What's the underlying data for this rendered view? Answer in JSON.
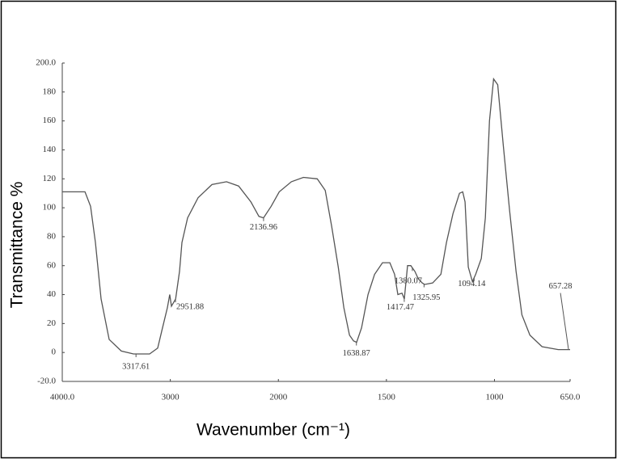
{
  "chart_data": {
    "type": "line",
    "x_label": "Wavenumber (cm⁻¹)",
    "y_label": "Transmittance %",
    "xlim": [
      4000,
      650
    ],
    "x_scale_break": 2000,
    "xticks": [
      {
        "value": 4000,
        "label": "4000.0"
      },
      3000,
      2000,
      1500,
      1000,
      {
        "value": 650,
        "label": "650.0"
      }
    ],
    "ylim": [
      -20,
      200
    ],
    "yticks": [
      {
        "value": 200,
        "label": "200.0"
      },
      180,
      160,
      140,
      120,
      100,
      80,
      60,
      40,
      20,
      0,
      {
        "value": -20,
        "label": "-20.0"
      }
    ],
    "color": "#555555",
    "x": [
      4000,
      3790,
      3738,
      3693,
      3641,
      3566,
      3454,
      3341,
      3192,
      3117,
      3079,
      3027,
      3005,
      2990,
      2951,
      2915,
      2892,
      2840,
      2743,
      2615,
      2480,
      2368,
      2254,
      2180,
      2137,
      2067,
      1996,
      1940,
      1884,
      1820,
      1783,
      1753,
      1723,
      1697,
      1671,
      1652,
      1638,
      1615,
      1585,
      1555,
      1518,
      1484,
      1462,
      1447,
      1428,
      1417,
      1402,
      1387,
      1368,
      1353,
      1334,
      1323,
      1286,
      1248,
      1222,
      1192,
      1162,
      1147,
      1136,
      1121,
      1102,
      1087,
      1061,
      1042,
      1023,
      1004,
      985,
      959,
      930,
      900,
      873,
      836,
      780,
      705,
      650
    ],
    "values": [
      111,
      111,
      101,
      76,
      37,
      9,
      1,
      -1,
      -1,
      3,
      15,
      31,
      40,
      32,
      37,
      56,
      76,
      93,
      107,
      116,
      118,
      115,
      104,
      94,
      93,
      101,
      111,
      118,
      121,
      120,
      112,
      87,
      59,
      31,
      12,
      8,
      7,
      17,
      40,
      54,
      62,
      62,
      54,
      40,
      41,
      37,
      60,
      60,
      56,
      51,
      48,
      47,
      48,
      54,
      76,
      96,
      110,
      111,
      104,
      59,
      49,
      54,
      65,
      93,
      160,
      189,
      185,
      143,
      98,
      56,
      26,
      12,
      4,
      2,
      2
    ],
    "peak_labels": [
      3317.61,
      2951.88,
      2136.96,
      1638.87,
      1417.47,
      1380.07,
      1325.95,
      1094.14,
      657.28
    ]
  }
}
